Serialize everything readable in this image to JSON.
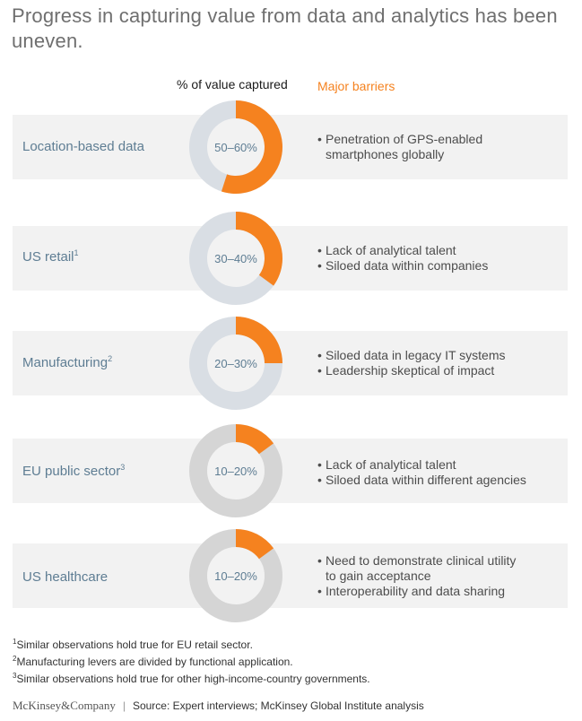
{
  "title": "Progress in capturing value from data and analytics has been uneven.",
  "headers": {
    "value": "% of value captured",
    "barriers": "Major barriers"
  },
  "colors": {
    "accent": "#f5821f",
    "ring_blue": "#d9dee4",
    "ring_gray": "#d5d5d5",
    "label": "#5e7d93",
    "band": "#f2f2f2"
  },
  "chart_data": {
    "type": "pie",
    "title": "Progress in capturing value from data and analytics has been uneven.",
    "categories": [
      "Location-based data",
      "US retail",
      "Manufacturing",
      "EU public sector",
      "US healthcare"
    ],
    "ranges": [
      [
        50,
        60
      ],
      [
        30,
        40
      ],
      [
        20,
        30
      ],
      [
        10,
        20
      ],
      [
        10,
        20
      ]
    ],
    "values": [
      55,
      35,
      25,
      15,
      15
    ],
    "range_labels": [
      "50–60%",
      "30–40%",
      "20–30%",
      "10–20%",
      "10–20%"
    ]
  },
  "rows": [
    {
      "label": "Location-based data",
      "sup": "",
      "barriers": [
        "Penetration of GPS-enabled smartphones globally"
      ]
    },
    {
      "label": "US retail",
      "sup": "1",
      "barriers": [
        "Lack of analytical talent",
        "Siloed data within companies"
      ]
    },
    {
      "label": "Manufacturing",
      "sup": "2",
      "barriers": [
        "Siloed data in legacy IT systems",
        "Leadership skeptical of impact"
      ]
    },
    {
      "label": "EU public sector",
      "sup": "3",
      "barriers": [
        "Lack of analytical talent",
        "Siloed data within different agencies"
      ]
    },
    {
      "label": "US healthcare",
      "sup": "",
      "barriers": [
        "Need to demonstrate clinical utility to gain acceptance",
        "Interoperability and data sharing"
      ]
    }
  ],
  "notes": [
    {
      "num": "1",
      "text": "Similar observations hold true for EU retail sector."
    },
    {
      "num": "2",
      "text": "Manufacturing levers are divided by functional application."
    },
    {
      "num": "3",
      "text": "Similar observations hold true for other high-income-country governments."
    }
  ],
  "footer": {
    "logo": "McKinsey&Company",
    "separator": "|",
    "source": "Source: Expert interviews; McKinsey Global Institute analysis"
  }
}
